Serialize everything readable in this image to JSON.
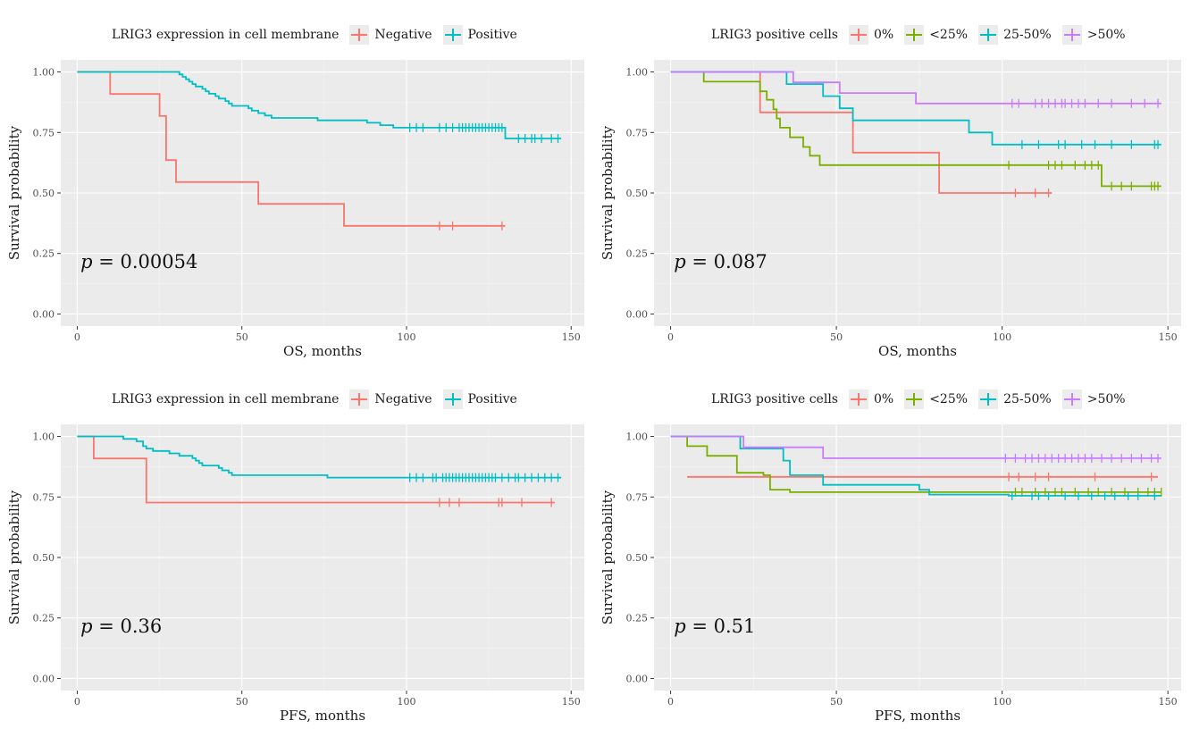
{
  "colors": {
    "negative": "#f8766d",
    "positive": "#00bfc4",
    "zero": "#f8766d",
    "lt25": "#7cae00",
    "p25_50": "#00bfc4",
    "gt50": "#c77cff",
    "panel_bg": "#ebebeb",
    "grid": "#ffffff"
  },
  "chart_data": [
    {
      "type": "line",
      "legend": {
        "title": "LRIG3 expression in cell membrane",
        "position": "top",
        "entries": [
          "Negative",
          "Positive"
        ]
      },
      "xlabel": "OS, months",
      "ylabel": "Survival probability",
      "xlim": [
        -5,
        154
      ],
      "ylim": [
        -0.05,
        1.05
      ],
      "xticks": [
        0,
        50,
        100,
        150
      ],
      "yticks": [
        0,
        0.25,
        0.5,
        0.75,
        1.0
      ],
      "xtick_labels": [
        "0",
        "50",
        "100",
        "150"
      ],
      "ytick_labels": [
        "0.00",
        "0.25",
        "0.50",
        "0.75",
        "1.00"
      ],
      "pvalue": {
        "symbol": "p",
        "text": " = 0.00054"
      },
      "series": [
        {
          "name": "Negative",
          "color_key": "negative",
          "steps": [
            [
              0,
              1.0
            ],
            [
              10,
              0.909
            ],
            [
              25,
              0.818
            ],
            [
              27,
              0.636
            ],
            [
              30,
              0.545
            ],
            [
              55,
              0.455
            ],
            [
              81,
              0.364
            ],
            [
              130,
              0.364
            ]
          ],
          "censor": [
            110,
            114,
            129
          ]
        },
        {
          "name": "Positive",
          "color_key": "positive",
          "steps": [
            [
              0,
              1.0
            ],
            [
              31,
              0.99
            ],
            [
              32,
              0.98
            ],
            [
              33,
              0.97
            ],
            [
              34,
              0.96
            ],
            [
              35,
              0.95
            ],
            [
              36,
              0.94
            ],
            [
              38,
              0.93
            ],
            [
              39,
              0.92
            ],
            [
              40,
              0.91
            ],
            [
              42,
              0.9
            ],
            [
              43,
              0.89
            ],
            [
              45,
              0.88
            ],
            [
              46,
              0.87
            ],
            [
              47,
              0.86
            ],
            [
              52,
              0.85
            ],
            [
              53,
              0.84
            ],
            [
              55,
              0.83
            ],
            [
              57,
              0.82
            ],
            [
              59,
              0.81
            ],
            [
              73,
              0.8
            ],
            [
              88,
              0.79
            ],
            [
              92,
              0.78
            ],
            [
              96,
              0.77
            ],
            [
              130,
              0.725
            ],
            [
              147,
              0.725
            ]
          ],
          "censor": [
            101,
            103,
            105,
            110,
            112,
            114,
            116,
            117,
            118,
            119,
            120,
            121,
            122,
            123,
            124,
            125,
            126,
            127,
            128,
            129,
            134,
            136,
            138,
            139,
            141,
            144,
            146
          ]
        }
      ]
    },
    {
      "type": "line",
      "legend": {
        "title": "LRIG3 positive cells",
        "position": "top",
        "entries": [
          "0%",
          "<25%",
          "25-50%",
          ">50%"
        ]
      },
      "xlabel": "OS, months",
      "ylabel": "Survival probability",
      "xlim": [
        -5,
        154
      ],
      "ylim": [
        -0.05,
        1.05
      ],
      "xticks": [
        0,
        50,
        100,
        150
      ],
      "yticks": [
        0,
        0.25,
        0.5,
        0.75,
        1.0
      ],
      "xtick_labels": [
        "0",
        "50",
        "100",
        "150"
      ],
      "ytick_labels": [
        "0.00",
        "0.25",
        "0.50",
        "0.75",
        "1.00"
      ],
      "pvalue": {
        "symbol": "p",
        "text": " = 0.087"
      },
      "series": [
        {
          "name": "0%",
          "color_key": "zero",
          "steps": [
            [
              0,
              1.0
            ],
            [
              27,
              0.833
            ],
            [
              55,
              0.667
            ],
            [
              81,
              0.5
            ],
            [
              115,
              0.5
            ]
          ],
          "censor": [
            104,
            110,
            114
          ]
        },
        {
          "name": "<25%",
          "color_key": "lt25",
          "steps": [
            [
              0,
              1.0
            ],
            [
              10,
              0.96
            ],
            [
              27,
              0.92
            ],
            [
              29,
              0.885
            ],
            [
              31,
              0.846
            ],
            [
              32,
              0.808
            ],
            [
              33,
              0.77
            ],
            [
              36,
              0.73
            ],
            [
              40,
              0.69
            ],
            [
              42,
              0.654
            ],
            [
              45,
              0.615
            ],
            [
              130,
              0.528
            ],
            [
              148,
              0.528
            ]
          ],
          "censor": [
            102,
            114,
            116,
            118,
            122,
            125,
            127,
            129,
            133,
            136,
            139,
            145,
            146,
            147
          ]
        },
        {
          "name": "25-50%",
          "color_key": "p25_50",
          "steps": [
            [
              0,
              1.0
            ],
            [
              35,
              0.95
            ],
            [
              46,
              0.9
            ],
            [
              51,
              0.85
            ],
            [
              55,
              0.8
            ],
            [
              90,
              0.75
            ],
            [
              97,
              0.7
            ],
            [
              148,
              0.7
            ]
          ],
          "censor": [
            106,
            111,
            117,
            119,
            124,
            128,
            133,
            139,
            146,
            147
          ]
        },
        {
          "name": ">50%",
          "color_key": "gt50",
          "steps": [
            [
              0,
              1.0
            ],
            [
              37,
              0.957
            ],
            [
              51,
              0.913
            ],
            [
              74,
              0.87
            ],
            [
              148,
              0.87
            ]
          ],
          "censor": [
            103,
            105,
            110,
            112,
            114,
            116,
            118,
            119,
            121,
            123,
            125,
            129,
            133,
            139,
            143,
            147
          ]
        }
      ]
    },
    {
      "type": "line",
      "legend": {
        "title": "LRIG3 expression in cell membrane",
        "position": "top",
        "entries": [
          "Negative",
          "Positive"
        ]
      },
      "xlabel": "PFS, months",
      "ylabel": "Survival probability",
      "xlim": [
        -5,
        154
      ],
      "ylim": [
        -0.05,
        1.05
      ],
      "xticks": [
        0,
        50,
        100,
        150
      ],
      "yticks": [
        0,
        0.25,
        0.5,
        0.75,
        1.0
      ],
      "xtick_labels": [
        "0",
        "50",
        "100",
        "150"
      ],
      "ytick_labels": [
        "0.00",
        "0.25",
        "0.50",
        "0.75",
        "1.00"
      ],
      "pvalue": {
        "symbol": "p",
        "text": " = 0.36"
      },
      "series": [
        {
          "name": "Negative",
          "color_key": "negative",
          "steps": [
            [
              0,
              1.0
            ],
            [
              5,
              0.909
            ],
            [
              21,
              0.727
            ],
            [
              145,
              0.727
            ]
          ],
          "censor": [
            110,
            113,
            116,
            128,
            129,
            135,
            144
          ]
        },
        {
          "name": "Positive",
          "color_key": "positive",
          "steps": [
            [
              0,
              1.0
            ],
            [
              14,
              0.99
            ],
            [
              18,
              0.98
            ],
            [
              20,
              0.96
            ],
            [
              21,
              0.95
            ],
            [
              23,
              0.94
            ],
            [
              28,
              0.93
            ],
            [
              31,
              0.92
            ],
            [
              35,
              0.91
            ],
            [
              36,
              0.9
            ],
            [
              37,
              0.89
            ],
            [
              38,
              0.88
            ],
            [
              43,
              0.87
            ],
            [
              44,
              0.86
            ],
            [
              46,
              0.85
            ],
            [
              47,
              0.84
            ],
            [
              76,
              0.83
            ],
            [
              147,
              0.83
            ]
          ],
          "censor": [
            101,
            103,
            105,
            108,
            109,
            111,
            112,
            113,
            114,
            115,
            116,
            117,
            118,
            119,
            120,
            121,
            122,
            123,
            124,
            125,
            126,
            127,
            129,
            131,
            133,
            134,
            136,
            138,
            140,
            142,
            144,
            146
          ]
        }
      ]
    },
    {
      "type": "line",
      "legend": {
        "title": "LRIG3 positive cells",
        "position": "top",
        "entries": [
          "0%",
          "<25%",
          "25-50%",
          ">50%"
        ]
      },
      "xlabel": "PFS, months",
      "ylabel": "Survival probability",
      "xlim": [
        -5,
        154
      ],
      "ylim": [
        -0.05,
        1.05
      ],
      "xticks": [
        0,
        50,
        100,
        150
      ],
      "yticks": [
        0,
        0.25,
        0.5,
        0.75,
        1.0
      ],
      "xtick_labels": [
        "0",
        "50",
        "100",
        "150"
      ],
      "ytick_labels": [
        "0.00",
        "0.25",
        "0.50",
        "0.75",
        "1.00"
      ],
      "pvalue": {
        "symbol": "p",
        "text": " = 0.51"
      },
      "series": [
        {
          "name": "0%",
          "color_key": "zero",
          "steps": [
            [
              5,
              0.833
            ],
            [
              147,
              0.833
            ]
          ],
          "censor": [
            102,
            105,
            110,
            114,
            128,
            145
          ]
        },
        {
          "name": "<25%",
          "color_key": "lt25",
          "steps": [
            [
              0,
              1.0
            ],
            [
              4,
              1.0
            ],
            [
              5,
              0.96
            ],
            [
              10,
              0.96
            ],
            [
              11,
              0.92
            ],
            [
              16,
              0.92
            ],
            [
              20,
              0.85
            ],
            [
              28,
              0.84
            ],
            [
              30,
              0.78
            ],
            [
              36,
              0.77
            ],
            [
              148,
              0.77
            ]
          ],
          "censor": [
            104,
            106,
            110,
            113,
            116,
            118,
            122,
            126,
            129,
            133,
            137,
            141,
            144,
            146,
            148
          ]
        },
        {
          "name": "25-50%",
          "color_key": "p25_50",
          "steps": [
            [
              0,
              1.0
            ],
            [
              21,
              0.95
            ],
            [
              34,
              0.9
            ],
            [
              36,
              0.84
            ],
            [
              46,
              0.8
            ],
            [
              75,
              0.78
            ],
            [
              78,
              0.76
            ],
            [
              102,
              0.755
            ],
            [
              148,
              0.755
            ]
          ],
          "censor": [
            103,
            109,
            111,
            114,
            119,
            123,
            127,
            131,
            134,
            138,
            141,
            146
          ]
        },
        {
          "name": ">50%",
          "color_key": "gt50",
          "steps": [
            [
              0,
              1.0
            ],
            [
              22,
              0.955
            ],
            [
              46,
              0.91
            ],
            [
              148,
              0.91
            ]
          ],
          "censor": [
            101,
            104,
            107,
            109,
            111,
            113,
            115,
            117,
            119,
            121,
            123,
            125,
            127,
            130,
            133,
            136,
            139,
            142,
            145,
            147
          ]
        }
      ]
    }
  ]
}
